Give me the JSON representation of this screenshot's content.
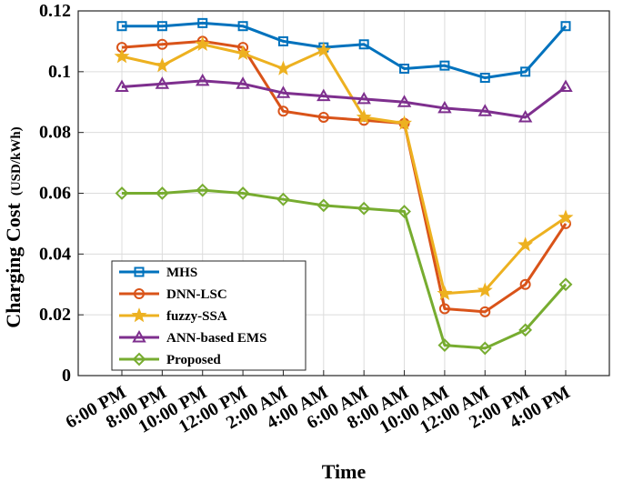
{
  "chart_data": {
    "type": "line",
    "title": "",
    "xlabel": "Time",
    "ylabel": "Charging Cost",
    "ylabel_unit": "(USD/kWh)",
    "categories": [
      "6:00 PM",
      "8:00 PM",
      "10:00 PM",
      "12:00 PM",
      "2:00 AM",
      "4:00 AM",
      "6:00 AM",
      "8:00 AM",
      "10:00 AM",
      "12:00 AM",
      "2:00 PM",
      "4:00 PM"
    ],
    "ylim": [
      0,
      0.12
    ],
    "yticks": [
      0,
      0.02,
      0.04,
      0.06,
      0.08,
      0.1,
      0.12
    ],
    "ytick_labels": [
      "0",
      "0.02",
      "0.04",
      "0.06",
      "0.08",
      "0.1",
      "0.12"
    ],
    "grid": true,
    "legend_position": "bottom-left",
    "series": [
      {
        "name": "MHS",
        "color": "#0072BD",
        "marker": "square",
        "values": [
          0.115,
          0.115,
          0.116,
          0.115,
          0.11,
          0.108,
          0.109,
          0.101,
          0.102,
          0.098,
          0.1,
          0.115
        ]
      },
      {
        "name": "DNN-LSC",
        "color": "#D95319",
        "marker": "circle",
        "values": [
          0.108,
          0.109,
          0.11,
          0.108,
          0.087,
          0.085,
          0.084,
          0.083,
          0.022,
          0.021,
          0.03,
          0.05
        ]
      },
      {
        "name": "fuzzy-SSA",
        "color": "#EDB120",
        "marker": "star",
        "values": [
          0.105,
          0.102,
          0.109,
          0.106,
          0.101,
          0.107,
          0.085,
          0.083,
          0.027,
          0.028,
          0.043,
          0.052
        ]
      },
      {
        "name": "ANN-based EMS",
        "color": "#7E2F8E",
        "marker": "triangle",
        "values": [
          0.095,
          0.096,
          0.097,
          0.096,
          0.093,
          0.092,
          0.091,
          0.09,
          0.088,
          0.087,
          0.085,
          0.095
        ]
      },
      {
        "name": "Proposed",
        "color": "#77AC30",
        "marker": "diamond",
        "values": [
          0.06,
          0.06,
          0.061,
          0.06,
          0.058,
          0.056,
          0.055,
          0.054,
          0.01,
          0.009,
          0.015,
          0.03
        ]
      }
    ]
  }
}
